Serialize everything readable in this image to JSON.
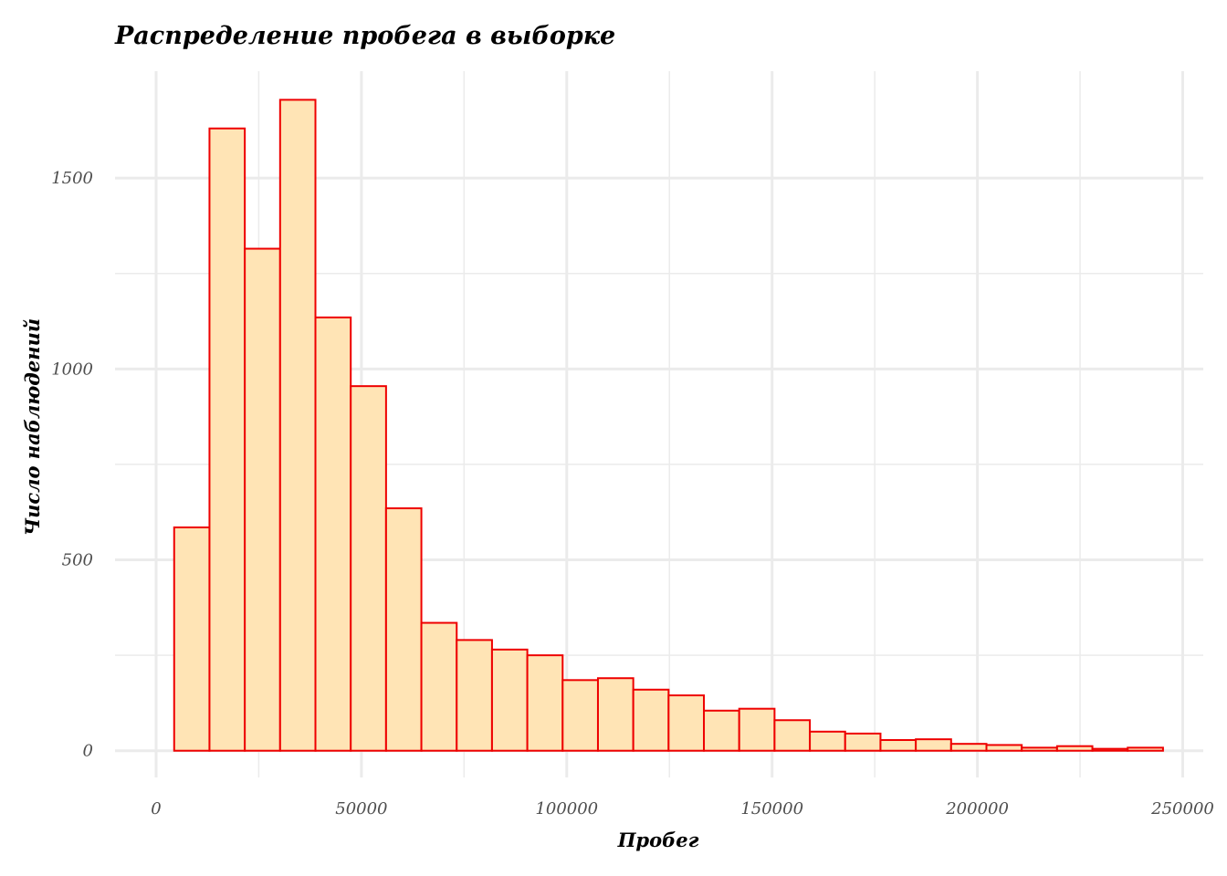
{
  "chart_data": {
    "type": "bar",
    "subtype": "histogram",
    "title": "Распределение пробега в выборке",
    "xlabel": "Пробег",
    "ylabel": "Число наблюдений",
    "xlim": [
      -10000,
      255000
    ],
    "ylim": [
      -70,
      1780
    ],
    "x_ticks": [
      "0",
      "50000",
      "100000",
      "150000",
      "200000",
      "250000"
    ],
    "y_ticks": [
      "0",
      "500",
      "1000",
      "1500"
    ],
    "x_tick_values": [
      0,
      50000,
      100000,
      150000,
      200000,
      250000
    ],
    "y_tick_values": [
      0,
      500,
      1000,
      1500
    ],
    "x_minor_values": [
      25000,
      75000,
      125000,
      175000,
      225000
    ],
    "y_minor_values": [
      250,
      750,
      1250
    ],
    "grid": true,
    "legend": "none",
    "colors": {
      "fill": "#ffe4b5",
      "edge": "#ee0000",
      "grid": "#ebebeb"
    },
    "bin_edges": [
      4400,
      13000,
      21600,
      30200,
      38800,
      47400,
      56000,
      64600,
      73200,
      81800,
      90400,
      99000,
      107600,
      116200,
      124800,
      133400,
      142000,
      150600,
      159200,
      167800,
      176400,
      185000,
      193600,
      202200,
      210800,
      219400,
      228000,
      236600,
      245200
    ],
    "counts": [
      585,
      1630,
      1315,
      1705,
      1135,
      955,
      635,
      335,
      290,
      265,
      250,
      185,
      190,
      160,
      145,
      105,
      110,
      80,
      50,
      45,
      28,
      30,
      18,
      15,
      8,
      12,
      5,
      8
    ]
  }
}
